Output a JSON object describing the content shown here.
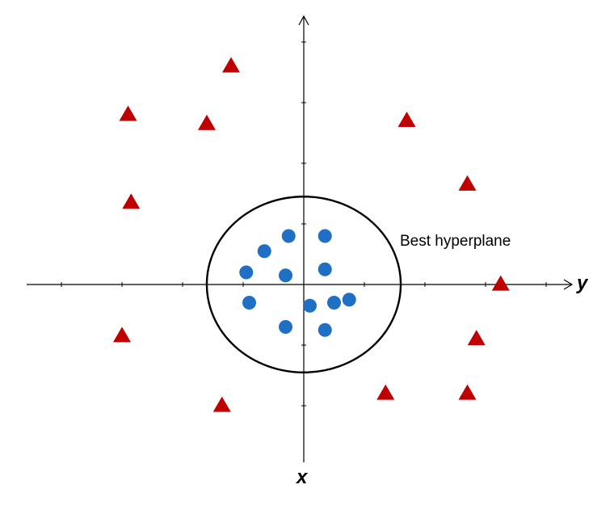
{
  "labels": {
    "horizontal_axis": "y",
    "vertical_axis": "x",
    "boundary": "Best hyperplane"
  },
  "colors": {
    "triangle": "#c00000",
    "circle": "#1f6fc5",
    "line": "#000000"
  },
  "chart_data": {
    "type": "scatter",
    "series": [
      {
        "marker": "triangle",
        "color": "#c00000",
        "points": [
          [
            -2.4,
            7.2
          ],
          [
            -5.8,
            5.6
          ],
          [
            -3.2,
            5.3
          ],
          [
            -5.7,
            2.7
          ],
          [
            3.4,
            5.4
          ],
          [
            5.4,
            3.3
          ],
          [
            6.5,
            0.0
          ],
          [
            -6.0,
            -1.7
          ],
          [
            5.7,
            -1.8
          ],
          [
            -2.7,
            -4.0
          ],
          [
            2.7,
            -3.6
          ],
          [
            5.4,
            -3.6
          ]
        ]
      },
      {
        "marker": "circle",
        "color": "#1f6fc5",
        "points": [
          [
            -0.5,
            1.6
          ],
          [
            0.7,
            1.6
          ],
          [
            -1.3,
            1.1
          ],
          [
            0.7,
            0.5
          ],
          [
            -1.9,
            0.4
          ],
          [
            -0.6,
            0.3
          ],
          [
            -1.8,
            -0.6
          ],
          [
            0.2,
            -0.7
          ],
          [
            1.0,
            -0.6
          ],
          [
            1.5,
            -0.5
          ],
          [
            -0.6,
            -1.4
          ],
          [
            0.7,
            -1.5
          ]
        ]
      }
    ],
    "boundary": {
      "shape": "ellipse",
      "center": [
        0,
        0
      ],
      "radius_y": 3.0,
      "radius_x": 2.9
    },
    "xlim": [
      -8.5,
      8.5
    ],
    "ylim": [
      -8.0,
      8.5
    ],
    "grid": false
  }
}
